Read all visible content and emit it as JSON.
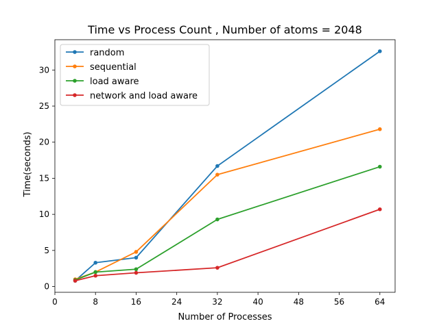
{
  "chart_data": {
    "type": "line",
    "title": "Time vs Process Count , Number of atoms = 2048",
    "xlabel": "Number of Processes",
    "ylabel": "Time(seconds)",
    "xlim": [
      0,
      67
    ],
    "ylim": [
      -0.8,
      34.2
    ],
    "xticks": [
      0,
      8,
      16,
      24,
      32,
      40,
      48,
      56,
      64
    ],
    "yticks": [
      0,
      5,
      10,
      15,
      20,
      25,
      30
    ],
    "grid": false,
    "legend_position": "top-left",
    "x": [
      4,
      8,
      16,
      32,
      64
    ],
    "series": [
      {
        "name": "random",
        "color": "#1f77b4",
        "values": [
          0.8,
          3.3,
          4.0,
          16.7,
          32.6
        ]
      },
      {
        "name": "sequential",
        "color": "#ff7f0e",
        "values": [
          1.0,
          2.0,
          4.8,
          15.5,
          21.8
        ]
      },
      {
        "name": "load aware",
        "color": "#2ca02c",
        "values": [
          0.9,
          2.0,
          2.4,
          9.3,
          16.6
        ]
      },
      {
        "name": "network and load aware",
        "color": "#d62728",
        "values": [
          0.8,
          1.5,
          1.9,
          2.6,
          10.7
        ]
      }
    ]
  }
}
